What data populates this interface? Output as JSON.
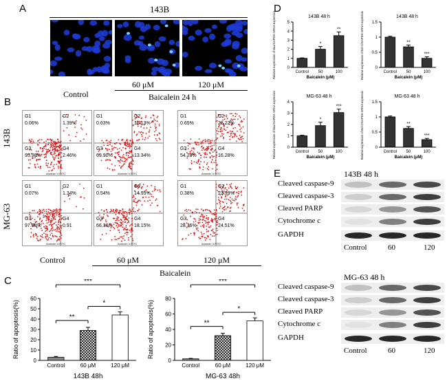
{
  "panels": {
    "A": {
      "letter": "A",
      "group_label": "143B",
      "image_labels": [
        "Control",
        "60 μM",
        "120 μM"
      ],
      "treatment_label": "Baicalein  24 h"
    },
    "B": {
      "letter": "B",
      "row_labels": [
        "143B",
        "MG-63"
      ],
      "col_labels": [
        "60 μM",
        "120 μM"
      ],
      "control_label": "Control",
      "treatment_label": "Baicalein",
      "gates": [
        "G1",
        "G2",
        "G3",
        "G4"
      ],
      "axis_x": "Annexin V-FITC",
      "axis_y": "Propidium Iodide",
      "quadrant_values": [
        {
          "cell": "143B",
          "condition": "Control",
          "G1": "0.06%",
          "G2": "1.39%",
          "G3": "95.98%",
          "G4": "2.46%"
        },
        {
          "cell": "143B",
          "condition": "60 μM",
          "G1": "0.63%",
          "G2": "16.13%",
          "G3": "69.90%",
          "G4": "13.34%"
        },
        {
          "cell": "143B",
          "condition": "120 μM",
          "G1": "0.65%",
          "G2": "28.22%",
          "G3": "54.28%",
          "G4": "16.28%"
        },
        {
          "cell": "MG-63",
          "condition": "Control",
          "G1": "0.07%",
          "G2": "1.34%",
          "G3": "97.68%",
          "G4": "0.91"
        },
        {
          "cell": "MG-63",
          "condition": "60 μM",
          "G1": "0.54%",
          "G2": "14.95%",
          "G3": "66.36%",
          "G4": "18.15%"
        },
        {
          "cell": "MG-63",
          "condition": "120 μM",
          "G1": "0.38%",
          "G2": "23.99%",
          "G3": "28.36%",
          "G4": "24.51%"
        }
      ]
    },
    "C": {
      "letter": "C"
    },
    "D": {
      "letter": "D"
    },
    "E": {
      "letter": "E",
      "blots": [
        {
          "title": "143B  48 h",
          "rows": [
            "Cleaved caspase-9",
            "Cleaved caspase-3",
            "Cleaved PARP",
            "Cytochrome c",
            "GAPDH"
          ],
          "lanes": [
            "Control",
            "60",
            "120"
          ]
        },
        {
          "title": "MG-63  48 h",
          "rows": [
            "Cleaved caspase-9",
            "Cleaved caspase-3",
            "Cleaved PARP",
            "Cytochrome c",
            "GAPDH"
          ],
          "lanes": [
            "Control",
            "60",
            "120"
          ]
        }
      ]
    }
  },
  "chart_data": [
    {
      "type": "bar",
      "panel": "C",
      "title": "143B  48h",
      "categories": [
        "Control",
        "60 μM",
        "120 μM"
      ],
      "values": [
        3,
        29,
        44
      ],
      "errors": [
        0.8,
        3,
        3
      ],
      "ylabel": "Ratio of apoptosis(%)",
      "ylim": [
        0,
        60
      ],
      "yticks": [
        0,
        10,
        20,
        30,
        40,
        50,
        60
      ],
      "significance": [
        {
          "pair": "Control-60 μM",
          "label": "**"
        },
        {
          "pair": "Control-120 μM",
          "label": "***"
        },
        {
          "pair": "60 μM-120 μM",
          "label": "*"
        }
      ],
      "fills": [
        "#888888",
        "hatched",
        "#ffffff"
      ]
    },
    {
      "type": "bar",
      "panel": "C",
      "title": "MG-63  48h",
      "categories": [
        "Control",
        "60 μM",
        "120 μM"
      ],
      "values": [
        2,
        32,
        51
      ],
      "errors": [
        0.6,
        3,
        4
      ],
      "ylabel": "Ratio of apoptosis(%)",
      "ylim": [
        0,
        80
      ],
      "yticks": [
        0,
        20,
        40,
        60,
        80
      ],
      "significance": [
        {
          "pair": "Control-60 μM",
          "label": "**"
        },
        {
          "pair": "Control-120 μM",
          "label": "***"
        },
        {
          "pair": "60 μM-120 μM",
          "label": "*"
        }
      ],
      "fills": [
        "#888888",
        "hatched",
        "#ffffff"
      ]
    },
    {
      "type": "bar",
      "panel": "D",
      "title": "143B  48 h",
      "categories": [
        "Control",
        "50",
        "100"
      ],
      "values": [
        1.0,
        2.0,
        3.5
      ],
      "errors": [
        0.05,
        0.3,
        0.4
      ],
      "ylabel": "Relative expression of Bax/GAPDH mRNA expression",
      "xlabel": "Baicalein (μM)",
      "ylim": [
        0,
        5
      ],
      "yticks": [
        0,
        1,
        2,
        3,
        4,
        5
      ],
      "sig": [
        "",
        "*",
        "**"
      ]
    },
    {
      "type": "bar",
      "panel": "D",
      "title": "143B  48 h",
      "categories": [
        "Control",
        "50",
        "100"
      ],
      "values": [
        1.0,
        0.68,
        0.3
      ],
      "errors": [
        0.03,
        0.06,
        0.05
      ],
      "ylabel": "Relative expression of Bcl-2/GAPDH mRNA expression",
      "xlabel": "Baicalein (μM)",
      "ylim": [
        0,
        1.5
      ],
      "yticks": [
        0.0,
        0.5,
        1.0,
        1.5
      ],
      "sig": [
        "",
        "**",
        "***"
      ]
    },
    {
      "type": "bar",
      "panel": "D",
      "title": "MG-63  48 h",
      "categories": [
        "Control",
        "50",
        "100"
      ],
      "values": [
        1.0,
        1.9,
        3.05
      ],
      "errors": [
        0.05,
        0.3,
        0.3
      ],
      "ylabel": "Relative expression of Bax/GAPDH mRNA expression",
      "xlabel": "Baicalein (μM)",
      "ylim": [
        0,
        4
      ],
      "yticks": [
        0,
        1,
        2,
        3,
        4
      ],
      "sig": [
        "",
        "*",
        "***"
      ]
    },
    {
      "type": "bar",
      "panel": "D",
      "title": "MG-63  48 h",
      "categories": [
        "Control",
        "50",
        "100"
      ],
      "values": [
        1.0,
        0.62,
        0.25
      ],
      "errors": [
        0.03,
        0.06,
        0.04
      ],
      "ylabel": "Relative expression of Bcl-2/GAPDH mRNA expression",
      "xlabel": "Baicalein (μM)",
      "ylim": [
        0,
        1.5
      ],
      "yticks": [
        0.0,
        0.5,
        1.0,
        1.5
      ],
      "sig": [
        "",
        "**",
        "***"
      ]
    }
  ]
}
